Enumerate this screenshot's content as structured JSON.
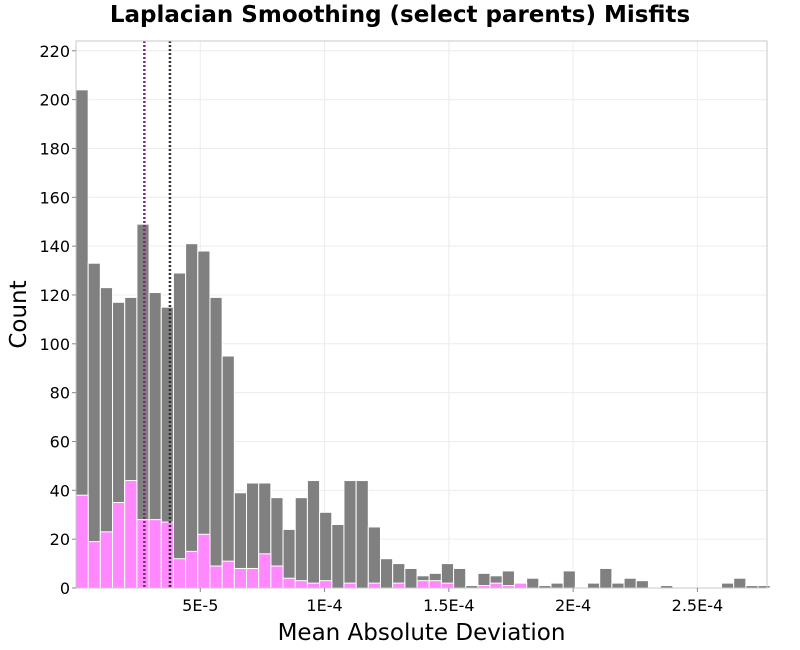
{
  "chart_data": {
    "type": "bar",
    "title": "Laplacian Smoothing (select parents) Misfits",
    "xlabel": "Mean Absolute Deviation",
    "ylabel": "Count",
    "xlim": [
      0.0,
      0.000278
    ],
    "ylim": [
      0,
      224
    ],
    "bin_start": 0.0,
    "bin_width": 4.9e-06,
    "x_ticks": [
      {
        "value": 5e-05,
        "label": "5E-5"
      },
      {
        "value": 0.0001,
        "label": "1E-4"
      },
      {
        "value": 0.00015,
        "label": "1.5E-4"
      },
      {
        "value": 0.0002,
        "label": "2E-4"
      },
      {
        "value": 0.00025,
        "label": "2.5E-4"
      }
    ],
    "y_ticks": [
      {
        "value": 0,
        "label": "0"
      },
      {
        "value": 20,
        "label": "20"
      },
      {
        "value": 40,
        "label": "40"
      },
      {
        "value": 60,
        "label": "60"
      },
      {
        "value": 80,
        "label": "80"
      },
      {
        "value": 100,
        "label": "100"
      },
      {
        "value": 120,
        "label": "120"
      },
      {
        "value": 140,
        "label": "140"
      },
      {
        "value": 160,
        "label": "160"
      },
      {
        "value": 180,
        "label": "180"
      },
      {
        "value": 200,
        "label": "200"
      },
      {
        "value": 220,
        "label": "220"
      }
    ],
    "series": [
      {
        "color": "#808080",
        "values": [
          204,
          133,
          123,
          117,
          119,
          149,
          121,
          115,
          129,
          141,
          138,
          119,
          95,
          39,
          43,
          43,
          37,
          24,
          37,
          44,
          31,
          26,
          44,
          44,
          25,
          12,
          10,
          8,
          5,
          6,
          10,
          8,
          1,
          6,
          5,
          7,
          1,
          4,
          1,
          2,
          7,
          0,
          2,
          8,
          2,
          4,
          3,
          0,
          1,
          0,
          0,
          0,
          0,
          2,
          4,
          1,
          1
        ]
      },
      {
        "color": "#ff88ff",
        "values": [
          38,
          19,
          23,
          35,
          44,
          28,
          28,
          27,
          12,
          15,
          22,
          9,
          11,
          8,
          8,
          14,
          9,
          4,
          3,
          2,
          3,
          0,
          2,
          0,
          2,
          0,
          2,
          0,
          3,
          3,
          2,
          0,
          0,
          1,
          2,
          1,
          2,
          0,
          0,
          0,
          0,
          0,
          0,
          0,
          0,
          0,
          0,
          0,
          0,
          0,
          0,
          0,
          0,
          0,
          0,
          0,
          0
        ]
      }
    ],
    "reference_lines": [
      {
        "x": 2.75e-05,
        "color": "#7a2a6e",
        "style": "dotted"
      },
      {
        "x": 3.78e-05,
        "color": "#333333",
        "style": "dotted"
      }
    ],
    "grid": true,
    "legend": "none"
  }
}
